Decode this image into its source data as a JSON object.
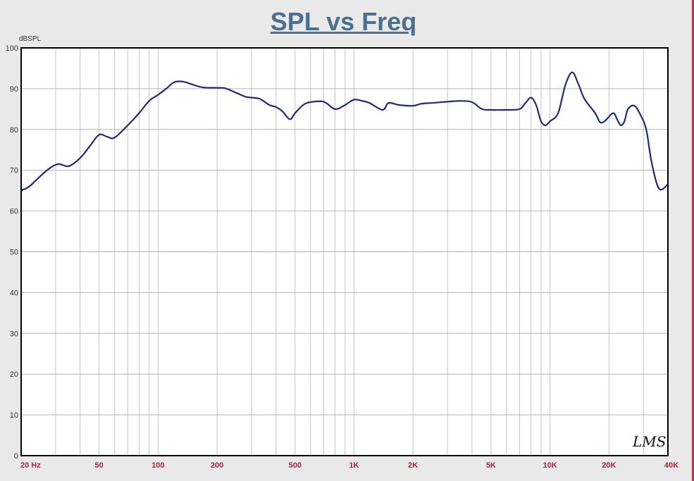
{
  "chart_data": {
    "type": "line",
    "title": "SPL vs Freq",
    "ylabel": "dBSPL",
    "xlabel": "",
    "x_scale": "log",
    "xlim": [
      20,
      40000
    ],
    "ylim": [
      0,
      100
    ],
    "grid": true,
    "yticks": [
      0,
      10,
      20,
      30,
      40,
      50,
      60,
      70,
      80,
      90,
      100
    ],
    "ytick_labels": [
      "0",
      "10",
      "20",
      "30",
      "40",
      "50",
      "60",
      "70",
      "80",
      "90",
      "100"
    ],
    "xticks": [
      20,
      50,
      100,
      200,
      500,
      1000,
      2000,
      5000,
      10000,
      20000,
      40000
    ],
    "xtick_labels": [
      "20 Hz",
      "50",
      "100",
      "200",
      "500",
      "1K",
      "2K",
      "5K",
      "10K",
      "20K",
      "40K"
    ],
    "series": [
      {
        "color": "#1f2a7a",
        "x": [
          20,
          22,
          25,
          28,
          31,
          35,
          40,
          45,
          50,
          55,
          60,
          70,
          80,
          90,
          100,
          110,
          120,
          130,
          140,
          150,
          170,
          200,
          220,
          250,
          280,
          300,
          330,
          370,
          400,
          430,
          470,
          500,
          550,
          600,
          700,
          800,
          900,
          1000,
          1100,
          1200,
          1400,
          1500,
          1700,
          2000,
          2200,
          2500,
          3000,
          3500,
          4000,
          4500,
          5000,
          6000,
          7000,
          7500,
          8000,
          8500,
          9000,
          9500,
          10000,
          11000,
          12000,
          13000,
          14000,
          15000,
          17000,
          18000,
          19000,
          21000,
          22000,
          23000,
          24000,
          25000,
          27000,
          29000,
          31000,
          33000,
          36000,
          40000
        ],
        "values": [
          65,
          66,
          68.5,
          70.5,
          71.5,
          71,
          73,
          76,
          78.7,
          78.2,
          78,
          81,
          84,
          87,
          88.5,
          90,
          91.5,
          91.8,
          91.5,
          91,
          90.3,
          90.2,
          90.1,
          89,
          88,
          87.8,
          87.5,
          86,
          85.5,
          84.5,
          82.5,
          84,
          86,
          86.7,
          86.8,
          85,
          86,
          87.3,
          87,
          86.5,
          84.8,
          86.5,
          86,
          85.8,
          86.3,
          86.5,
          86.8,
          87,
          86.7,
          85,
          84.8,
          84.8,
          85,
          86.5,
          87.8,
          86,
          82,
          81,
          82,
          84,
          91,
          94,
          91,
          87.5,
          84,
          81.8,
          82,
          84,
          82.5,
          81,
          82,
          85,
          85.8,
          83.5,
          80,
          72,
          65.5,
          66.5
        ]
      }
    ]
  },
  "plot_signature": "LMS"
}
